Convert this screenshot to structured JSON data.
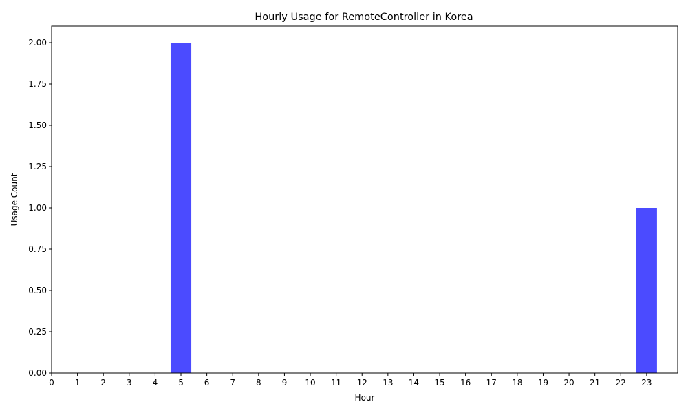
{
  "chart_data": {
    "type": "bar",
    "title": "Hourly Usage for RemoteController in Korea",
    "xlabel": "Hour",
    "ylabel": "Usage Count",
    "categories": [
      "0",
      "1",
      "2",
      "3",
      "4",
      "5",
      "6",
      "7",
      "8",
      "9",
      "10",
      "11",
      "12",
      "13",
      "14",
      "15",
      "16",
      "17",
      "18",
      "19",
      "20",
      "21",
      "22",
      "23"
    ],
    "x": [
      5,
      23
    ],
    "values": [
      2,
      1
    ],
    "ylim": [
      0,
      2.1
    ],
    "xlim": [
      0,
      24.2
    ],
    "yticks": [
      "0.00",
      "0.25",
      "0.50",
      "0.75",
      "1.00",
      "1.25",
      "1.50",
      "1.75",
      "2.00"
    ],
    "bar_color": "#4b4bff",
    "grid": false,
    "legend": "none"
  }
}
